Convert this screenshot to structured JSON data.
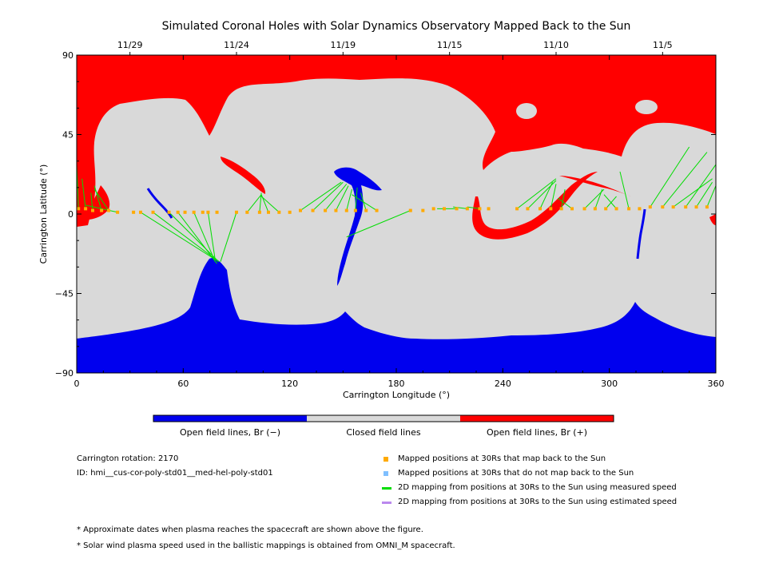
{
  "chart_data": {
    "type": "heatmap",
    "title": "Simulated Coronal Holes with Solar Dynamics Observatory Mapped Back to the Sun",
    "xlabel": "Carrington Longitude (°)",
    "ylabel": "Carrington Latitude (°)",
    "xlim": [
      0,
      360
    ],
    "ylim": [
      -90,
      90
    ],
    "xticks": [
      "0",
      "60",
      "120",
      "180",
      "240",
      "300",
      "360"
    ],
    "yticks": [
      "90",
      "45",
      "0",
      "-45",
      "-90"
    ],
    "top_axis_dates": [
      {
        "label": "11/29",
        "lon": 30
      },
      {
        "label": "11/24",
        "lon": 90
      },
      {
        "label": "11/19",
        "lon": 150
      },
      {
        "label": "11/15",
        "lon": 210
      },
      {
        "label": "11/10",
        "lon": 270
      },
      {
        "label": "11/5",
        "lon": 330
      }
    ],
    "categories": [
      "Open field lines, Br (−)",
      "Closed field lines",
      "Open field lines, Br (+)"
    ],
    "category_colors": [
      "#0000ee",
      "#d9d9d9",
      "#ff0000"
    ],
    "mapped_points": [
      {
        "lon": 1,
        "lat": 3
      },
      {
        "lon": 5,
        "lat": 3
      },
      {
        "lon": 9,
        "lat": 2
      },
      {
        "lon": 14,
        "lat": 2
      },
      {
        "lon": 18,
        "lat": 2
      },
      {
        "lon": 23,
        "lat": 1
      },
      {
        "lon": 32,
        "lat": 1
      },
      {
        "lon": 36,
        "lat": 1
      },
      {
        "lon": 43,
        "lat": 1
      },
      {
        "lon": 52,
        "lat": 1
      },
      {
        "lon": 57,
        "lat": 1
      },
      {
        "lon": 61,
        "lat": 1
      },
      {
        "lon": 66,
        "lat": 1
      },
      {
        "lon": 71,
        "lat": 1
      },
      {
        "lon": 74,
        "lat": 1
      },
      {
        "lon": 79,
        "lat": 1
      },
      {
        "lon": 90,
        "lat": 1
      },
      {
        "lon": 96,
        "lat": 1
      },
      {
        "lon": 103,
        "lat": 1
      },
      {
        "lon": 108,
        "lat": 1
      },
      {
        "lon": 114,
        "lat": 1
      },
      {
        "lon": 120,
        "lat": 1
      },
      {
        "lon": 126,
        "lat": 2
      },
      {
        "lon": 133,
        "lat": 2
      },
      {
        "lon": 140,
        "lat": 2
      },
      {
        "lon": 146,
        "lat": 2
      },
      {
        "lon": 152,
        "lat": 2
      },
      {
        "lon": 157,
        "lat": 2
      },
      {
        "lon": 163,
        "lat": 2
      },
      {
        "lon": 169,
        "lat": 2
      },
      {
        "lon": 188,
        "lat": 2
      },
      {
        "lon": 195,
        "lat": 2
      },
      {
        "lon": 201,
        "lat": 3
      },
      {
        "lon": 207,
        "lat": 3
      },
      {
        "lon": 214,
        "lat": 3
      },
      {
        "lon": 220,
        "lat": 3
      },
      {
        "lon": 227,
        "lat": 3
      },
      {
        "lon": 232,
        "lat": 3
      },
      {
        "lon": 248,
        "lat": 3
      },
      {
        "lon": 254,
        "lat": 3
      },
      {
        "lon": 261,
        "lat": 3
      },
      {
        "lon": 267,
        "lat": 3
      },
      {
        "lon": 273,
        "lat": 3
      },
      {
        "lon": 279,
        "lat": 3
      },
      {
        "lon": 286,
        "lat": 3
      },
      {
        "lon": 292,
        "lat": 3
      },
      {
        "lon": 298,
        "lat": 3
      },
      {
        "lon": 304,
        "lat": 3
      },
      {
        "lon": 311,
        "lat": 3
      },
      {
        "lon": 317,
        "lat": 3
      },
      {
        "lon": 323,
        "lat": 4
      },
      {
        "lon": 330,
        "lat": 4
      },
      {
        "lon": 336,
        "lat": 4
      },
      {
        "lon": 343,
        "lat": 4
      },
      {
        "lon": 349,
        "lat": 4
      },
      {
        "lon": 355,
        "lat": 4
      }
    ],
    "mapping_lines": [
      {
        "from": [
          1,
          3
        ],
        "to": [
          0,
          28
        ]
      },
      {
        "from": [
          5,
          3
        ],
        "to": [
          3,
          20
        ]
      },
      {
        "from": [
          9,
          2
        ],
        "to": [
          8,
          12
        ]
      },
      {
        "from": [
          14,
          2
        ],
        "to": [
          10,
          16
        ]
      },
      {
        "from": [
          18,
          2
        ],
        "to": [
          10,
          14
        ]
      },
      {
        "from": [
          23,
          1
        ],
        "to": [
          5,
          5
        ]
      },
      {
        "from": [
          36,
          1
        ],
        "to": [
          80,
          -27
        ]
      },
      {
        "from": [
          43,
          1
        ],
        "to": [
          80,
          -27
        ]
      },
      {
        "from": [
          52,
          1
        ],
        "to": [
          80,
          -27
        ]
      },
      {
        "from": [
          57,
          1
        ],
        "to": [
          79,
          -28
        ]
      },
      {
        "from": [
          66,
          1
        ],
        "to": [
          78,
          -27
        ]
      },
      {
        "from": [
          74,
          1
        ],
        "to": [
          78,
          -26
        ]
      },
      {
        "from": [
          90,
          1
        ],
        "to": [
          81,
          -27
        ]
      },
      {
        "from": [
          96,
          1
        ],
        "to": [
          104,
          11
        ]
      },
      {
        "from": [
          103,
          1
        ],
        "to": [
          104,
          12
        ]
      },
      {
        "from": [
          108,
          1
        ],
        "to": [
          104,
          11
        ]
      },
      {
        "from": [
          114,
          1
        ],
        "to": [
          104,
          10
        ]
      },
      {
        "from": [
          126,
          2
        ],
        "to": [
          149,
          18
        ]
      },
      {
        "from": [
          133,
          2
        ],
        "to": [
          150,
          18
        ]
      },
      {
        "from": [
          140,
          2
        ],
        "to": [
          152,
          17
        ]
      },
      {
        "from": [
          146,
          2
        ],
        "to": [
          153,
          16
        ]
      },
      {
        "from": [
          152,
          2
        ],
        "to": [
          155,
          14
        ]
      },
      {
        "from": [
          157,
          2
        ],
        "to": [
          158,
          15
        ]
      },
      {
        "from": [
          163,
          2
        ],
        "to": [
          160,
          12
        ]
      },
      {
        "from": [
          169,
          2
        ],
        "to": [
          155,
          11
        ]
      },
      {
        "from": [
          188,
          2
        ],
        "to": [
          152,
          -13
        ]
      },
      {
        "from": [
          214,
          3
        ],
        "to": [
          203,
          3
        ]
      },
      {
        "from": [
          220,
          3
        ],
        "to": [
          212,
          4
        ]
      },
      {
        "from": [
          227,
          3
        ],
        "to": [
          220,
          4
        ]
      },
      {
        "from": [
          248,
          3
        ],
        "to": [
          270,
          20
        ]
      },
      {
        "from": [
          254,
          3
        ],
        "to": [
          270,
          19
        ]
      },
      {
        "from": [
          261,
          3
        ],
        "to": [
          268,
          18
        ]
      },
      {
        "from": [
          267,
          3
        ],
        "to": [
          270,
          17
        ]
      },
      {
        "from": [
          273,
          3
        ],
        "to": [
          275,
          14
        ]
      },
      {
        "from": [
          279,
          3
        ],
        "to": [
          271,
          9
        ]
      },
      {
        "from": [
          286,
          3
        ],
        "to": [
          297,
          14
        ]
      },
      {
        "from": [
          292,
          3
        ],
        "to": [
          296,
          14
        ]
      },
      {
        "from": [
          298,
          3
        ],
        "to": [
          304,
          10
        ]
      },
      {
        "from": [
          304,
          3
        ],
        "to": [
          297,
          11
        ]
      },
      {
        "from": [
          311,
          3
        ],
        "to": [
          306,
          24
        ]
      },
      {
        "from": [
          323,
          4
        ],
        "to": [
          345,
          38
        ]
      },
      {
        "from": [
          330,
          4
        ],
        "to": [
          355,
          35
        ]
      },
      {
        "from": [
          336,
          4
        ],
        "to": [
          358,
          20
        ]
      },
      {
        "from": [
          343,
          4
        ],
        "to": [
          360,
          28
        ]
      },
      {
        "from": [
          349,
          4
        ],
        "to": [
          358,
          18
        ]
      },
      {
        "from": [
          355,
          4
        ],
        "to": [
          360,
          16
        ]
      }
    ],
    "legend": [
      {
        "label": "Mapped positions at 30Rs that map back to the Sun",
        "color": "#ffaa00",
        "kind": "square"
      },
      {
        "label": "Mapped positions at 30Rs that do not map back to the Sun",
        "color": "#7fbfff",
        "kind": "square"
      },
      {
        "label": "2D mapping from positions at 30Rs to the Sun using measured speed",
        "color": "#00dd00",
        "kind": "line"
      },
      {
        "label": "2D mapping from positions at 30Rs to the Sun using estimated speed",
        "color": "#bb88ee",
        "kind": "line"
      }
    ],
    "info": [
      "Carrington rotation: 2170",
      "ID: hmi__cus-cor-poly-std01__med-hel-poly-std01"
    ],
    "footnotes": [
      "* Approximate dates when plasma reaches the spacecraft are shown above the figure.",
      "* Solar wind plasma speed used in the ballistic mappings is obtained from OMNI_M spacecraft."
    ]
  }
}
